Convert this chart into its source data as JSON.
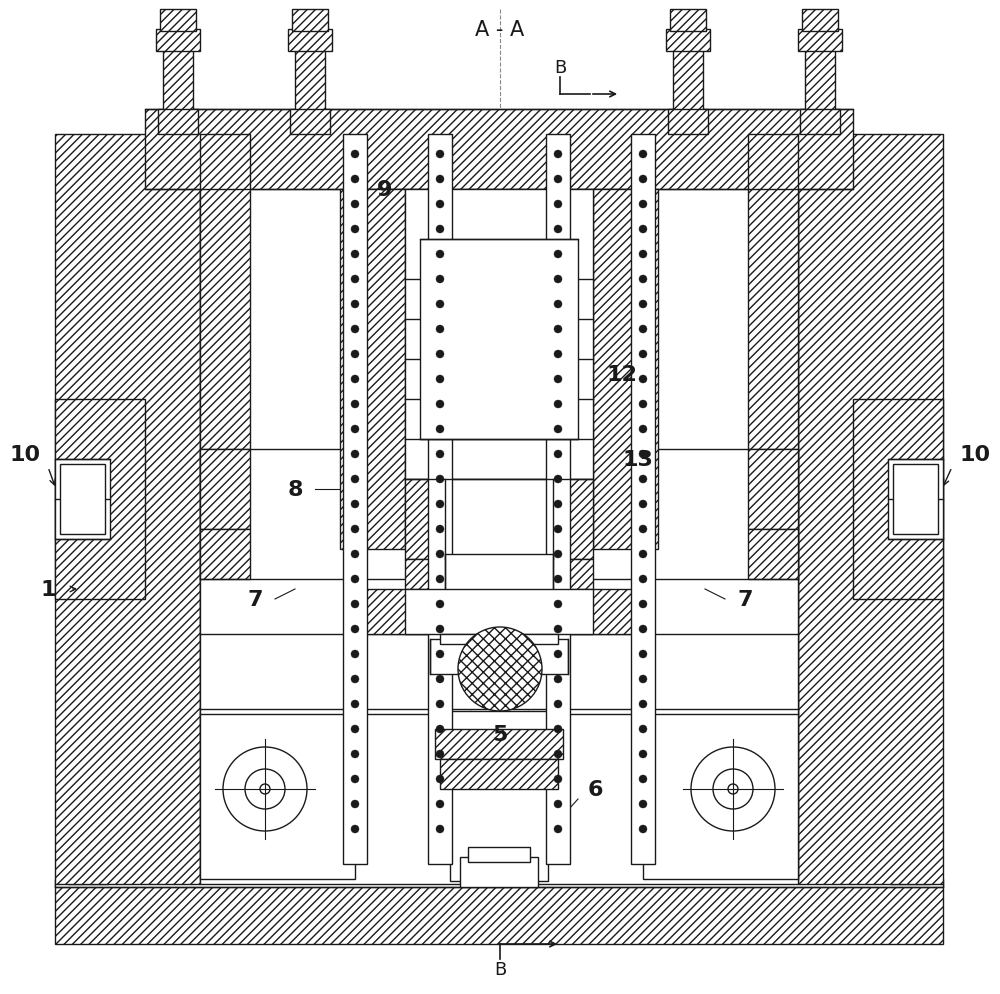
{
  "background_color": "#ffffff",
  "line_color": "#1a1a1a",
  "label_A_A": "A - A",
  "label_B_top": "B",
  "label_B_bottom": "B",
  "label_1": "1",
  "label_5": "5",
  "label_6": "6",
  "label_7_left": "7",
  "label_7_right": "7",
  "label_8": "8",
  "label_9": "9",
  "label_10_left": "10",
  "label_10_right": "10",
  "label_12": "12",
  "label_13": "13",
  "figsize": [
    10.0,
    9.95
  ],
  "dpi": 100
}
